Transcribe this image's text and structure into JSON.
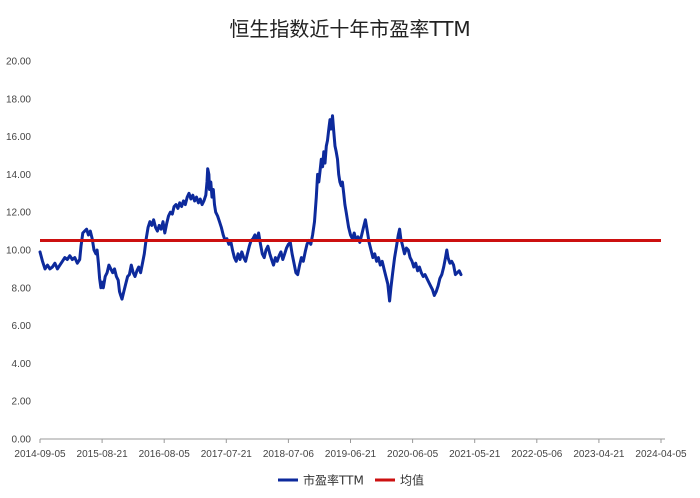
{
  "chart_data": {
    "type": "line",
    "title": "恒生指数近十年市盈率TTM",
    "xlabel": "",
    "ylabel": "",
    "ylim": [
      0,
      20
    ],
    "yticks": [
      "0.00",
      "2.00",
      "4.00",
      "6.00",
      "8.00",
      "10.00",
      "12.00",
      "14.00",
      "16.00",
      "18.00",
      "20.00"
    ],
    "xticks": [
      "2014-09-05",
      "2015-08-21",
      "2016-08-05",
      "2017-07-21",
      "2018-07-06",
      "2019-06-21",
      "2020-06-05",
      "2021-05-21",
      "2022-05-06",
      "2023-04-21",
      "2024-04-05"
    ],
    "grid": false,
    "legend_position": "bottom-center",
    "series": [
      {
        "name": "市盈率TTM",
        "color": "#0d2a9c",
        "points": [
          [
            0.0,
            9.9
          ],
          [
            0.04,
            9.4
          ],
          [
            0.08,
            9.0
          ],
          [
            0.12,
            9.2
          ],
          [
            0.16,
            9.0
          ],
          [
            0.2,
            9.1
          ],
          [
            0.24,
            9.3
          ],
          [
            0.28,
            9.0
          ],
          [
            0.32,
            9.2
          ],
          [
            0.36,
            9.4
          ],
          [
            0.4,
            9.6
          ],
          [
            0.44,
            9.5
          ],
          [
            0.48,
            9.7
          ],
          [
            0.52,
            9.5
          ],
          [
            0.56,
            9.6
          ],
          [
            0.6,
            9.3
          ],
          [
            0.64,
            9.5
          ],
          [
            0.66,
            10.2
          ],
          [
            0.69,
            10.9
          ],
          [
            0.72,
            11.0
          ],
          [
            0.75,
            11.1
          ],
          [
            0.78,
            10.8
          ],
          [
            0.81,
            11.0
          ],
          [
            0.84,
            10.6
          ],
          [
            0.87,
            10.0
          ],
          [
            0.9,
            9.8
          ],
          [
            0.92,
            10.0
          ],
          [
            0.94,
            9.3
          ],
          [
            0.96,
            8.5
          ],
          [
            0.98,
            8.0
          ],
          [
            1.0,
            8.3
          ],
          [
            1.02,
            8.0
          ],
          [
            1.05,
            8.6
          ],
          [
            1.08,
            8.8
          ],
          [
            1.11,
            9.2
          ],
          [
            1.14,
            9.0
          ],
          [
            1.17,
            8.8
          ],
          [
            1.2,
            9.0
          ],
          [
            1.23,
            8.6
          ],
          [
            1.26,
            8.4
          ],
          [
            1.28,
            7.8
          ],
          [
            1.3,
            7.6
          ],
          [
            1.32,
            7.4
          ],
          [
            1.35,
            7.8
          ],
          [
            1.38,
            8.2
          ],
          [
            1.41,
            8.6
          ],
          [
            1.44,
            8.7
          ],
          [
            1.47,
            9.2
          ],
          [
            1.5,
            8.8
          ],
          [
            1.53,
            8.6
          ],
          [
            1.56,
            8.9
          ],
          [
            1.59,
            9.1
          ],
          [
            1.62,
            8.8
          ],
          [
            1.65,
            9.3
          ],
          [
            1.68,
            9.8
          ],
          [
            1.71,
            10.6
          ],
          [
            1.74,
            11.2
          ],
          [
            1.77,
            11.5
          ],
          [
            1.8,
            11.3
          ],
          [
            1.83,
            11.6
          ],
          [
            1.86,
            11.2
          ],
          [
            1.89,
            11.0
          ],
          [
            1.92,
            11.3
          ],
          [
            1.95,
            11.1
          ],
          [
            1.98,
            11.5
          ],
          [
            2.01,
            10.9
          ],
          [
            2.04,
            11.4
          ],
          [
            2.07,
            11.8
          ],
          [
            2.1,
            12.0
          ],
          [
            2.13,
            11.9
          ],
          [
            2.16,
            12.3
          ],
          [
            2.19,
            12.4
          ],
          [
            2.22,
            12.2
          ],
          [
            2.25,
            12.5
          ],
          [
            2.28,
            12.3
          ],
          [
            2.31,
            12.6
          ],
          [
            2.34,
            12.4
          ],
          [
            2.37,
            12.8
          ],
          [
            2.4,
            13.0
          ],
          [
            2.43,
            12.7
          ],
          [
            2.46,
            12.9
          ],
          [
            2.49,
            12.6
          ],
          [
            2.52,
            12.8
          ],
          [
            2.55,
            12.5
          ],
          [
            2.58,
            12.7
          ],
          [
            2.61,
            12.4
          ],
          [
            2.64,
            12.6
          ],
          [
            2.67,
            12.9
          ],
          [
            2.69,
            13.6
          ],
          [
            2.7,
            14.3
          ],
          [
            2.72,
            14.0
          ],
          [
            2.73,
            13.2
          ],
          [
            2.75,
            13.6
          ],
          [
            2.77,
            12.8
          ],
          [
            2.79,
            13.2
          ],
          [
            2.81,
            12.4
          ],
          [
            2.83,
            12.0
          ],
          [
            2.86,
            11.8
          ],
          [
            2.89,
            11.5
          ],
          [
            2.92,
            11.2
          ],
          [
            2.95,
            10.8
          ],
          [
            2.98,
            10.5
          ],
          [
            3.01,
            10.6
          ],
          [
            3.04,
            10.3
          ],
          [
            3.07,
            10.5
          ],
          [
            3.1,
            10.0
          ],
          [
            3.13,
            9.6
          ],
          [
            3.16,
            9.4
          ],
          [
            3.19,
            9.8
          ],
          [
            3.22,
            9.5
          ],
          [
            3.25,
            9.9
          ],
          [
            3.28,
            9.6
          ],
          [
            3.31,
            9.4
          ],
          [
            3.34,
            9.8
          ],
          [
            3.37,
            10.2
          ],
          [
            3.4,
            10.5
          ],
          [
            3.43,
            10.6
          ],
          [
            3.46,
            10.8
          ],
          [
            3.49,
            10.5
          ],
          [
            3.52,
            10.9
          ],
          [
            3.55,
            10.3
          ],
          [
            3.58,
            9.8
          ],
          [
            3.61,
            9.6
          ],
          [
            3.64,
            10.0
          ],
          [
            3.67,
            10.2
          ],
          [
            3.7,
            9.8
          ],
          [
            3.73,
            9.5
          ],
          [
            3.76,
            9.2
          ],
          [
            3.79,
            9.6
          ],
          [
            3.82,
            9.4
          ],
          [
            3.85,
            9.7
          ],
          [
            3.88,
            9.9
          ],
          [
            3.91,
            9.5
          ],
          [
            3.94,
            9.8
          ],
          [
            3.97,
            10.1
          ],
          [
            4.0,
            10.3
          ],
          [
            4.03,
            10.4
          ],
          [
            4.06,
            9.8
          ],
          [
            4.09,
            9.3
          ],
          [
            4.12,
            8.8
          ],
          [
            4.15,
            8.7
          ],
          [
            4.18,
            9.2
          ],
          [
            4.21,
            9.6
          ],
          [
            4.24,
            9.4
          ],
          [
            4.27,
            9.9
          ],
          [
            4.3,
            10.3
          ],
          [
            4.33,
            10.5
          ],
          [
            4.36,
            10.3
          ],
          [
            4.39,
            10.8
          ],
          [
            4.42,
            11.5
          ],
          [
            4.45,
            12.8
          ],
          [
            4.47,
            14.0
          ],
          [
            4.49,
            13.6
          ],
          [
            4.51,
            14.2
          ],
          [
            4.53,
            14.8
          ],
          [
            4.55,
            14.4
          ],
          [
            4.57,
            15.2
          ],
          [
            4.59,
            14.6
          ],
          [
            4.61,
            15.5
          ],
          [
            4.63,
            15.8
          ],
          [
            4.65,
            16.4
          ],
          [
            4.67,
            16.9
          ],
          [
            4.69,
            16.4
          ],
          [
            4.71,
            17.1
          ],
          [
            4.73,
            16.3
          ],
          [
            4.75,
            15.5
          ],
          [
            4.77,
            15.2
          ],
          [
            4.79,
            14.8
          ],
          [
            4.81,
            14.0
          ],
          [
            4.83,
            13.6
          ],
          [
            4.85,
            13.4
          ],
          [
            4.87,
            13.6
          ],
          [
            4.89,
            13.0
          ],
          [
            4.91,
            12.4
          ],
          [
            4.93,
            12.0
          ],
          [
            4.95,
            11.6
          ],
          [
            4.97,
            11.2
          ],
          [
            5.0,
            10.8
          ],
          [
            5.03,
            10.6
          ],
          [
            5.06,
            10.9
          ],
          [
            5.09,
            10.5
          ],
          [
            5.12,
            10.7
          ],
          [
            5.15,
            10.4
          ],
          [
            5.18,
            10.8
          ],
          [
            5.21,
            11.2
          ],
          [
            5.24,
            11.6
          ],
          [
            5.27,
            11.0
          ],
          [
            5.3,
            10.4
          ],
          [
            5.33,
            10.0
          ],
          [
            5.36,
            9.6
          ],
          [
            5.39,
            9.8
          ],
          [
            5.42,
            9.4
          ],
          [
            5.45,
            9.6
          ],
          [
            5.48,
            9.2
          ],
          [
            5.51,
            9.4
          ],
          [
            5.54,
            9.0
          ],
          [
            5.57,
            8.6
          ],
          [
            5.6,
            8.2
          ],
          [
            5.62,
            7.6
          ],
          [
            5.63,
            7.3
          ],
          [
            5.65,
            8.0
          ],
          [
            5.68,
            8.8
          ],
          [
            5.71,
            9.6
          ],
          [
            5.74,
            10.2
          ],
          [
            5.77,
            10.8
          ],
          [
            5.79,
            11.1
          ],
          [
            5.81,
            10.6
          ],
          [
            5.84,
            10.2
          ],
          [
            5.87,
            9.8
          ],
          [
            5.9,
            10.1
          ],
          [
            5.93,
            10.0
          ],
          [
            5.96,
            9.6
          ],
          [
            5.99,
            9.4
          ],
          [
            6.02,
            9.1
          ],
          [
            6.05,
            9.3
          ],
          [
            6.08,
            8.9
          ],
          [
            6.11,
            9.1
          ],
          [
            6.14,
            8.8
          ],
          [
            6.17,
            8.6
          ],
          [
            6.2,
            8.7
          ],
          [
            6.23,
            8.5
          ],
          [
            6.26,
            8.3
          ],
          [
            6.29,
            8.1
          ],
          [
            6.32,
            7.9
          ],
          [
            6.35,
            7.6
          ],
          [
            6.38,
            7.8
          ],
          [
            6.41,
            8.1
          ],
          [
            6.44,
            8.5
          ],
          [
            6.47,
            8.7
          ],
          [
            6.5,
            9.1
          ],
          [
            6.53,
            9.6
          ],
          [
            6.55,
            10.0
          ],
          [
            6.57,
            9.6
          ],
          [
            6.6,
            9.3
          ],
          [
            6.63,
            9.4
          ],
          [
            6.66,
            9.2
          ],
          [
            6.69,
            8.7
          ],
          [
            6.72,
            8.8
          ],
          [
            6.75,
            8.9
          ],
          [
            6.78,
            8.7
          ]
        ]
      },
      {
        "name": "均值",
        "color": "#cc1010",
        "value": 10.5
      }
    ]
  }
}
